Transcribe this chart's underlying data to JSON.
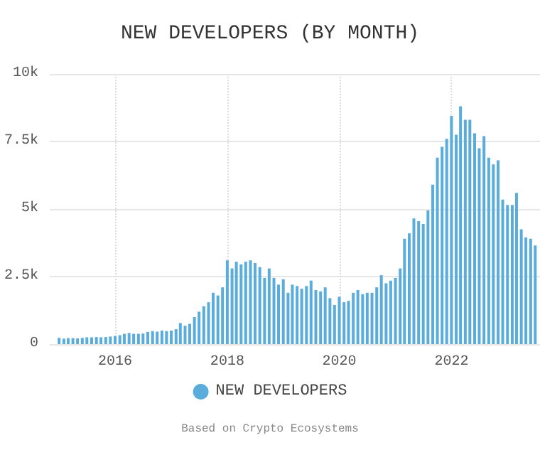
{
  "chart_data": {
    "type": "bar",
    "title": "NEW DEVELOPERS (BY MONTH)",
    "annotations": [
      "Based on Crypto Ecosystems"
    ],
    "x": [
      "2015-01",
      "2015-02",
      "2015-03",
      "2015-04",
      "2015-05",
      "2015-06",
      "2015-07",
      "2015-08",
      "2015-09",
      "2015-10",
      "2015-11",
      "2015-12",
      "2016-01",
      "2016-02",
      "2016-03",
      "2016-04",
      "2016-05",
      "2016-06",
      "2016-07",
      "2016-08",
      "2016-09",
      "2016-10",
      "2016-11",
      "2016-12",
      "2017-01",
      "2017-02",
      "2017-03",
      "2017-04",
      "2017-05",
      "2017-06",
      "2017-07",
      "2017-08",
      "2017-09",
      "2017-10",
      "2017-11",
      "2017-12",
      "2018-01",
      "2018-02",
      "2018-03",
      "2018-04",
      "2018-05",
      "2018-06",
      "2018-07",
      "2018-08",
      "2018-09",
      "2018-10",
      "2018-11",
      "2018-12",
      "2019-01",
      "2019-02",
      "2019-03",
      "2019-04",
      "2019-05",
      "2019-06",
      "2019-07",
      "2019-08",
      "2019-09",
      "2019-10",
      "2019-11",
      "2019-12",
      "2020-01",
      "2020-02",
      "2020-03",
      "2020-04",
      "2020-05",
      "2020-06",
      "2020-07",
      "2020-08",
      "2020-09",
      "2020-10",
      "2020-11",
      "2020-12",
      "2021-01",
      "2021-02",
      "2021-03",
      "2021-04",
      "2021-05",
      "2021-06",
      "2021-07",
      "2021-08",
      "2021-09",
      "2021-10",
      "2021-11",
      "2021-12",
      "2022-01",
      "2022-02",
      "2022-03",
      "2022-04",
      "2022-05",
      "2022-06",
      "2022-07",
      "2022-08",
      "2022-09",
      "2022-10",
      "2022-11",
      "2022-12",
      "2023-01",
      "2023-02",
      "2023-03",
      "2023-04",
      "2023-05",
      "2023-06",
      "2023-07"
    ],
    "series": [
      {
        "name": "NEW DEVELOPERS",
        "color": "#5aacdb",
        "values": [
          230,
          200,
          220,
          220,
          210,
          230,
          250,
          250,
          260,
          250,
          260,
          280,
          300,
          330,
          380,
          410,
          380,
          380,
          390,
          450,
          480,
          460,
          500,
          480,
          500,
          550,
          780,
          680,
          750,
          1000,
          1200,
          1400,
          1550,
          1900,
          1800,
          2100,
          3100,
          2800,
          3050,
          2950,
          3050,
          3100,
          3000,
          2850,
          2450,
          2800,
          2450,
          2200,
          2400,
          1900,
          2200,
          2150,
          2050,
          2150,
          2350,
          2000,
          1950,
          2100,
          1700,
          1450,
          1750,
          1550,
          1600,
          1900,
          2000,
          1850,
          1900,
          1900,
          2100,
          2550,
          2250,
          2350,
          2450,
          2800,
          3900,
          4100,
          4650,
          4550,
          4450,
          4950,
          5900,
          6900,
          7300,
          7600,
          8450,
          7750,
          8800,
          8300,
          8300,
          7800,
          7250,
          7700,
          6900,
          6650,
          6800,
          5350,
          5150,
          5150,
          5600,
          4250,
          3950,
          3900,
          3650
        ]
      }
    ],
    "xlim": [
      "2014-11",
      "2023-08"
    ],
    "xticks": [
      "2016",
      "2018",
      "2020",
      "2022"
    ],
    "ylim": [
      0,
      10000
    ],
    "yticks": [
      {
        "value": 0,
        "label": "0"
      },
      {
        "value": 2500,
        "label": "2.5k"
      },
      {
        "value": 5000,
        "label": "5k"
      },
      {
        "value": 7500,
        "label": "7.5k"
      },
      {
        "value": 10000,
        "label": "10k"
      }
    ],
    "grid": true,
    "legend": "bottom"
  }
}
